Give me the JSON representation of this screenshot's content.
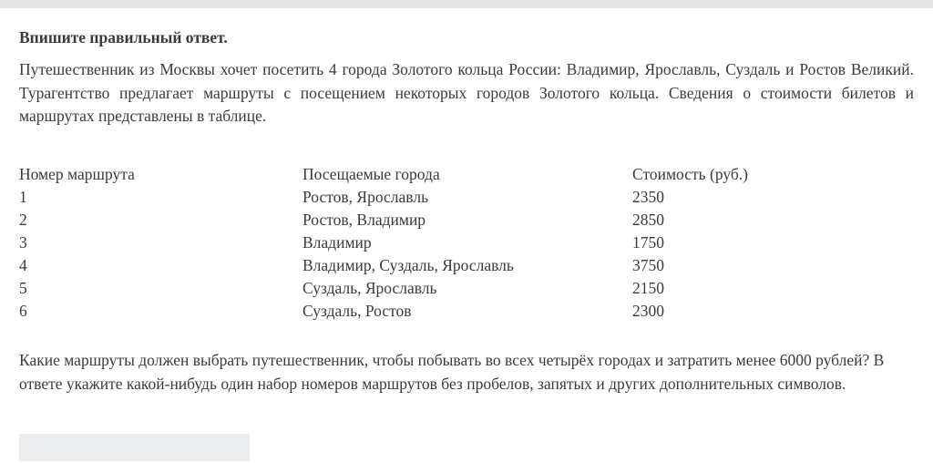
{
  "page": {
    "title": "Впишите правильный ответ.",
    "intro": "Путешественник из Москвы хочет посетить 4 города Золотого кольца России: Владимир, Ярославль, Суздаль и Ростов Великий. Турагентство предлагает маршруты с посещением некоторых городов Золотого кольца. Сведения о стоимости билетов и маршрутах представлены в таблице.",
    "question": "Какие маршруты должен выбрать путешественник, чтобы побывать во всех четырёх городах и затратить менее 6000 рублей? В ответе укажите какой-нибудь один набор номеров маршрутов без пробелов, запятых и других дополнительных символов."
  },
  "table": {
    "headers": [
      "Номер маршрута",
      "Посещаемые города",
      "Стоимость (руб.)"
    ],
    "rows": [
      [
        "1",
        "Ростов, Ярославль",
        "2350"
      ],
      [
        "2",
        "Ростов, Владимир",
        "2850"
      ],
      [
        "3",
        "Владимир",
        "1750"
      ],
      [
        "4",
        "Владимир, Суздаль, Ярославль",
        "3750"
      ],
      [
        "5",
        "Суздаль, Ярославль",
        "2150"
      ],
      [
        "6",
        "Суздаль, Ростов",
        "2300"
      ]
    ]
  },
  "answer_input": {
    "value": ""
  },
  "colors": {
    "top_bar": "#e3e6e7",
    "input_bg": "#e9edee",
    "text": "#3b3b3b"
  }
}
